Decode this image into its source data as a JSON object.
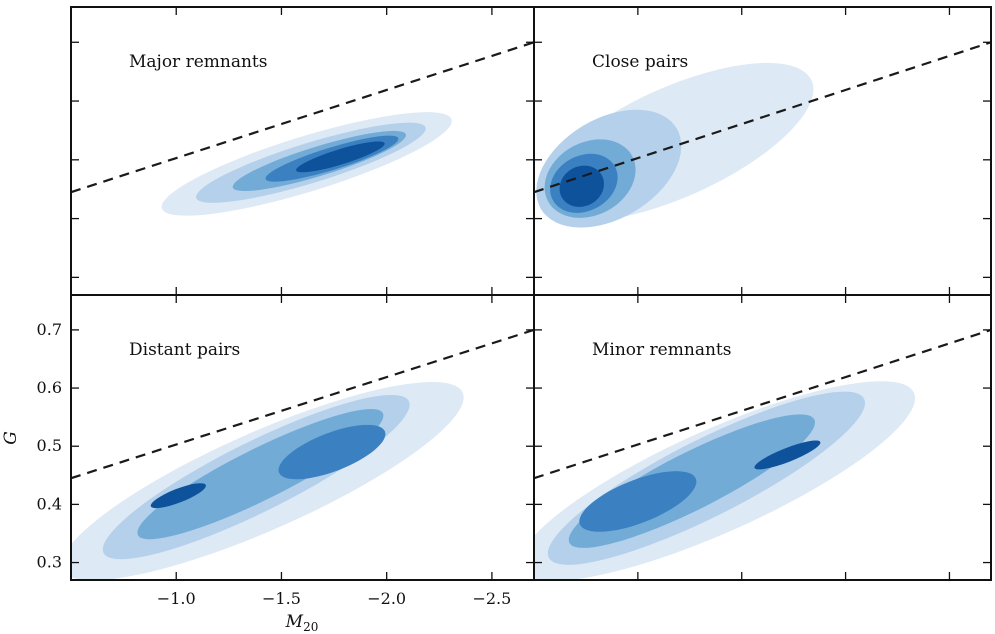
{
  "chart_data": {
    "type": "contour",
    "xlabel": "M",
    "xlabel_subscript": "20",
    "ylabel": "G",
    "xlim": [
      -0.5,
      -2.7
    ],
    "ylim": [
      0.27,
      0.76
    ],
    "x_ticks": [
      -1.0,
      -1.5,
      -2.0,
      -2.5
    ],
    "x_tick_labels": [
      "−1.0",
      "−1.5",
      "−2.0",
      "−2.5"
    ],
    "y_ticks": [
      0.3,
      0.4,
      0.5,
      0.6,
      0.7
    ],
    "y_tick_labels": [
      "0.3",
      "0.4",
      "0.5",
      "0.6",
      "0.7"
    ],
    "merger_line": {
      "style": "dashed",
      "points": [
        [
          -0.5,
          0.445
        ],
        [
          -2.7,
          0.7
        ]
      ]
    },
    "colors": [
      "#dde9f5",
      "#b4d0ea",
      "#73abd7",
      "#3b81c1",
      "#0e529c"
    ],
    "panels": [
      {
        "label": "Major remnants",
        "blobs": [
          {
            "cx": -1.62,
            "cy": 0.493,
            "rx": 0.72,
            "ry": 0.047,
            "tilt": 0.11
          },
          {
            "cx": -1.64,
            "cy": 0.495,
            "rx": 0.57,
            "ry": 0.034,
            "tilt": 0.11
          },
          {
            "cx": -1.68,
            "cy": 0.498,
            "rx": 0.43,
            "ry": 0.025,
            "tilt": 0.11
          },
          {
            "cx": -1.74,
            "cy": 0.502,
            "rx": 0.33,
            "ry": 0.019,
            "tilt": 0.11
          },
          {
            "cx": -1.78,
            "cy": 0.505,
            "rx": 0.22,
            "ry": 0.013,
            "tilt": 0.11
          }
        ]
      },
      {
        "label": "Close pairs",
        "blobs": [
          {
            "cx": -1.18,
            "cy": 0.53,
            "rx": 0.72,
            "ry": 0.093,
            "tilt": 0.16
          },
          {
            "cx": -0.86,
            "cy": 0.485,
            "rx": 0.38,
            "ry": 0.085,
            "tilt": 0.21
          },
          {
            "cx": -0.77,
            "cy": 0.468,
            "rx": 0.23,
            "ry": 0.062,
            "tilt": 0.19
          },
          {
            "cx": -0.74,
            "cy": 0.46,
            "rx": 0.17,
            "ry": 0.047,
            "tilt": 0.19
          },
          {
            "cx": -0.73,
            "cy": 0.455,
            "rx": 0.11,
            "ry": 0.034,
            "tilt": 0.19
          }
        ]
      },
      {
        "label": "Distant pairs",
        "blobs": [
          {
            "cx": -1.41,
            "cy": 0.44,
            "rx": 1.04,
            "ry": 0.084,
            "tilt": 0.16
          },
          {
            "cx": -1.38,
            "cy": 0.447,
            "rx": 0.81,
            "ry": 0.06,
            "tilt": 0.18
          },
          {
            "cx": -1.4,
            "cy": 0.452,
            "rx": 0.65,
            "ry": 0.044,
            "tilt": 0.18
          },
          {
            "cx": -1.74,
            "cy": 0.49,
            "rx": 0.27,
            "ry": 0.033,
            "tilt": 0.14
          },
          {
            "cx": -1.01,
            "cy": 0.415,
            "rx": 0.14,
            "ry": 0.012,
            "tilt": 0.14
          }
        ]
      },
      {
        "label": "Minor remnants",
        "blobs": [
          {
            "cx": -1.38,
            "cy": 0.44,
            "rx": 1.04,
            "ry": 0.088,
            "tilt": 0.16
          },
          {
            "cx": -1.33,
            "cy": 0.445,
            "rx": 0.85,
            "ry": 0.066,
            "tilt": 0.18
          },
          {
            "cx": -1.26,
            "cy": 0.44,
            "rx": 0.66,
            "ry": 0.049,
            "tilt": 0.18
          },
          {
            "cx": -1.0,
            "cy": 0.405,
            "rx": 0.3,
            "ry": 0.037,
            "tilt": 0.14
          },
          {
            "cx": -1.72,
            "cy": 0.485,
            "rx": 0.17,
            "ry": 0.012,
            "tilt": 0.14
          }
        ]
      }
    ]
  }
}
